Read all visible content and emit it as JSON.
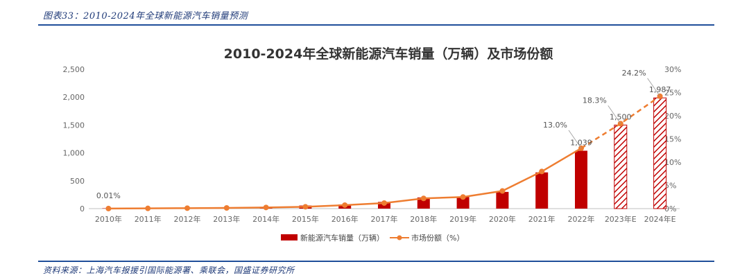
{
  "caption": "图表33：2010-2024年全球新能源汽车销量预测",
  "source": "资料来源：上海汽车报援引国际能源署、乘联会，国盛证券研究所",
  "chart_data": {
    "type": "bar",
    "title": "2010-2024年全球新能源汽车销量（万辆）及市场份额",
    "categories": [
      "2010年",
      "2011年",
      "2012年",
      "2013年",
      "2014年",
      "2015年",
      "2016年",
      "2017年",
      "2018年",
      "2019年",
      "2020年",
      "2021年",
      "2022年",
      "2023年E",
      "2024年E"
    ],
    "series": [
      {
        "name": "新能源汽车销量（万辆）",
        "type": "bar",
        "axis": "left",
        "color": "#c00000",
        "values": [
          1,
          5,
          12,
          20,
          32,
          55,
          75,
          120,
          200,
          210,
          300,
          650,
          1039,
          1500,
          1987
        ],
        "estimate_from_index": 13
      },
      {
        "name": "市场份额（%）",
        "type": "line",
        "axis": "right",
        "color": "#ee7d31",
        "values": [
          0.01,
          0.05,
          0.1,
          0.15,
          0.25,
          0.4,
          0.75,
          1.2,
          2.2,
          2.5,
          3.8,
          8.0,
          13.0,
          18.3,
          24.2
        ],
        "dashed_from_index": 12
      }
    ],
    "y_left": {
      "min": 0,
      "max": 2500,
      "ticks": [
        "0",
        "500",
        "1,000",
        "1,500",
        "2,000",
        "2,500"
      ]
    },
    "y_right": {
      "min": 0,
      "max": 30,
      "ticks": [
        "0%",
        "5%",
        "10%",
        "15%",
        "20%",
        "25%",
        "30%"
      ]
    },
    "bar_labels": [
      {
        "index": 12,
        "text": "1,039"
      },
      {
        "index": 13,
        "text": "1,500"
      },
      {
        "index": 14,
        "text": "1,987"
      }
    ],
    "line_labels": [
      {
        "index": 0,
        "text": "0.01%"
      },
      {
        "index": 12,
        "text": "13.0%"
      },
      {
        "index": 13,
        "text": "18.3%"
      },
      {
        "index": 14,
        "text": "24.2%"
      }
    ],
    "grid": false,
    "legend_position": "bottom"
  }
}
